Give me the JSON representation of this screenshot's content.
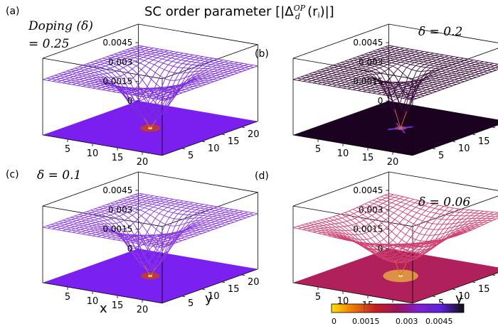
{
  "figure": {
    "title": "SC order parameter [|Δ",
    "title_sup": "OP",
    "title_sub": "d",
    "title_tail": "(r",
    "title_sub2": "i",
    "title_end": ")|]"
  },
  "panels": [
    {
      "id": "a",
      "tag": "(a)",
      "doping": 0.25,
      "label_line1": "Doping (δ)",
      "label_line2": "= 0.25",
      "surface_color": "#7b2be0",
      "base_color": "#7a1ff0",
      "dip_depth": 0.9,
      "dip_width": 3.2
    },
    {
      "id": "b",
      "tag": "(b)",
      "doping": 0.2,
      "label_line1": "δ = 0.2",
      "label_line2": "",
      "surface_color": "#3a0a3a",
      "base_color": "#1a0220",
      "dip_depth": 0.85,
      "dip_width": 1.8
    },
    {
      "id": "c",
      "tag": "(c)",
      "doping": 0.1,
      "label_line1": "δ = 0.1",
      "label_line2": "",
      "surface_color": "#8a3ae0",
      "base_color": "#7a20f0",
      "dip_depth": 0.9,
      "dip_width": 3.0
    },
    {
      "id": "d",
      "tag": "(d)",
      "doping": 0.06,
      "label_line1": "δ = 0.06",
      "label_line2": "",
      "surface_color": "#d04070",
      "base_color": "#b0205a",
      "dip_depth": 0.75,
      "dip_width": 5.5
    }
  ],
  "axes": {
    "z_ticks": [
      "0",
      "0.0015",
      "0.003",
      "0.0045"
    ],
    "x_ticks": [
      "5",
      "10",
      "15",
      "20"
    ],
    "y_ticks": [
      "5",
      "10",
      "15",
      "20"
    ],
    "xlabel": "x",
    "ylabel": "y"
  },
  "colorbar": {
    "ticks": [
      "0",
      "0.0015",
      "0.003",
      "0.0045"
    ],
    "stops": [
      "#ffe000",
      "#f08000",
      "#c02020",
      "#a01060",
      "#8020d0",
      "#7030f0",
      "#101010"
    ]
  },
  "chart_data": {
    "type": "surface",
    "title": "SC order parameter [|Δd^OP(ri)|]",
    "zlim": [
      0,
      0.0045
    ],
    "x_range": [
      1,
      24
    ],
    "y_range": [
      1,
      24
    ],
    "series": [
      {
        "doping": 0.25,
        "bulk_value": 0.0045,
        "min_value": 0.0
      },
      {
        "doping": 0.2,
        "bulk_value": 0.0045,
        "min_value": 0.0
      },
      {
        "doping": 0.1,
        "bulk_value": 0.0045,
        "min_value": 0.0
      },
      {
        "doping": 0.06,
        "bulk_value": 0.0045,
        "min_value": 0.0
      }
    ]
  }
}
